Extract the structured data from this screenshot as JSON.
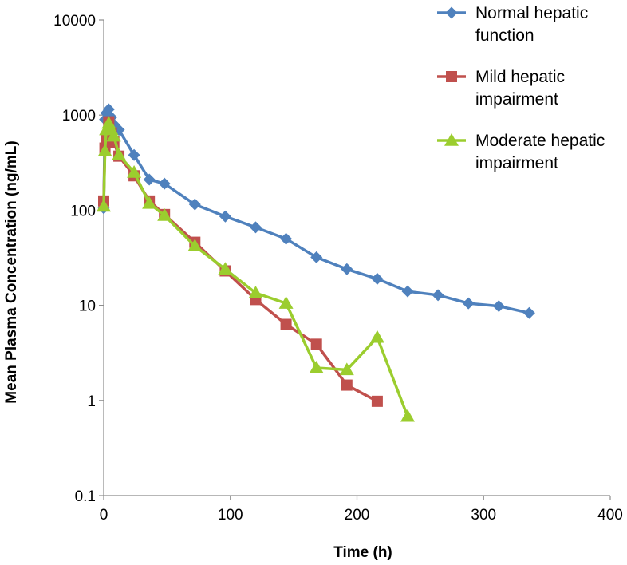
{
  "chart_data": {
    "type": "line",
    "title": "",
    "xlabel": "Time (h)",
    "ylabel": "Mean Plasma Concentration (ng/mL)",
    "xlim": [
      0,
      400
    ],
    "ylim": [
      0.1,
      10000
    ],
    "yscale": "log",
    "x_ticks": [
      0,
      100,
      200,
      300,
      400
    ],
    "x_tick_labels": [
      "0",
      "100",
      "200",
      "300",
      "400"
    ],
    "y_ticks": [
      0.1,
      1,
      10,
      100,
      1000,
      10000
    ],
    "y_tick_labels": [
      "0.1",
      "1",
      "10",
      "100",
      "1000",
      "10000"
    ],
    "grid": false,
    "legend_position": "top-right",
    "series": [
      {
        "name": "Normal hepatic function",
        "legend_lines": [
          "Normal hepatic",
          "function"
        ],
        "color": "#4f81bd",
        "marker": "diamond",
        "points": [
          [
            0,
            105
          ],
          [
            1,
            900
          ],
          [
            2,
            1050
          ],
          [
            4,
            1150
          ],
          [
            6,
            950
          ],
          [
            8,
            800
          ],
          [
            12,
            700
          ],
          [
            24,
            380
          ],
          [
            36,
            210
          ],
          [
            48,
            190
          ],
          [
            72,
            115
          ],
          [
            96,
            86
          ],
          [
            120,
            66
          ],
          [
            144,
            50
          ],
          [
            168,
            32
          ],
          [
            192,
            24
          ],
          [
            216,
            19
          ],
          [
            240,
            14
          ],
          [
            264,
            12.8
          ],
          [
            288,
            10.5
          ],
          [
            312,
            9.8
          ],
          [
            336,
            8.3
          ]
        ]
      },
      {
        "name": "Mild hepatic impairment",
        "legend_lines": [
          "Mild hepatic",
          "impairment"
        ],
        "color": "#c0504d",
        "marker": "square",
        "points": [
          [
            0,
            125
          ],
          [
            1,
            450
          ],
          [
            2,
            560
          ],
          [
            4,
            850
          ],
          [
            6,
            650
          ],
          [
            8,
            520
          ],
          [
            12,
            370
          ],
          [
            24,
            230
          ],
          [
            36,
            125
          ],
          [
            48,
            90
          ],
          [
            72,
            46
          ],
          [
            96,
            23
          ],
          [
            120,
            11.5
          ],
          [
            144,
            6.3
          ],
          [
            168,
            3.9
          ],
          [
            192,
            1.45
          ],
          [
            216,
            0.98
          ]
        ]
      },
      {
        "name": "Moderate hepatic impairment",
        "legend_lines": [
          "Moderate hepatic",
          "impairment"
        ],
        "color": "#9bcd2e",
        "marker": "triangle",
        "points": [
          [
            0,
            110
          ],
          [
            1,
            420
          ],
          [
            2,
            700
          ],
          [
            4,
            820
          ],
          [
            6,
            700
          ],
          [
            8,
            600
          ],
          [
            12,
            380
          ],
          [
            24,
            250
          ],
          [
            36,
            118
          ],
          [
            48,
            88
          ],
          [
            72,
            42
          ],
          [
            96,
            24
          ],
          [
            120,
            13.5
          ],
          [
            144,
            10.5
          ],
          [
            168,
            2.2
          ],
          [
            192,
            2.1
          ],
          [
            216,
            4.6
          ],
          [
            240,
            0.68
          ]
        ]
      }
    ]
  }
}
